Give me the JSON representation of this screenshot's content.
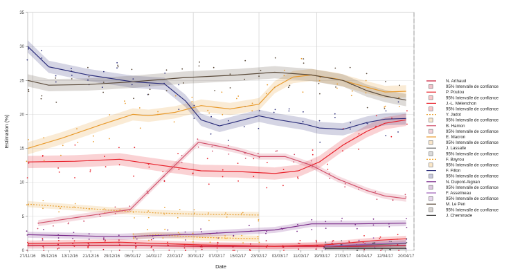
{
  "chart_data": {
    "type": "line",
    "xlabel": "Date",
    "ylabel": "Estimation (%)",
    "ylim": [
      0,
      35
    ],
    "yticks": [
      0,
      5,
      10,
      15,
      20,
      25,
      30,
      35
    ],
    "xlim": [
      "2016-11-27",
      "2017-04-23"
    ],
    "xtick_dates": [
      "2016-11-27",
      "2016-12-05",
      "2016-12-13",
      "2016-12-21",
      "2016-12-29",
      "2017-01-06",
      "2017-01-14",
      "2017-01-22",
      "2017-01-30",
      "2017-02-07",
      "2017-02-15",
      "2017-02-23",
      "2017-03-03",
      "2017-03-11",
      "2017-03-19",
      "2017-03-27",
      "2017-04-04",
      "2017-04-12",
      "2017-04-20"
    ],
    "xtick_labels": [
      "27/11/16",
      "05/12/16",
      "13/12/16",
      "21/12/16",
      "29/12/16",
      "06/01/17",
      "14/01/17",
      "22/01/17",
      "30/01/17",
      "07/02/17",
      "15/02/17",
      "23/02/17",
      "03/03/17",
      "11/03/17",
      "19/03/17",
      "27/03/17",
      "04/04/17",
      "12/04/17",
      "20/04/17"
    ],
    "vlines": [
      "2016-11-29",
      "2017-01-29",
      "2017-02-23",
      "2017-03-17"
    ],
    "final_line": "2017-04-23",
    "grid": true,
    "legend_position": "right",
    "series": [
      {
        "name": "N. Arthaud",
        "color": "#c8102e",
        "dash": "solid",
        "ci_label": "95% Intervalle de confiance",
        "points": [
          [
            "2016-11-27",
            0.7
          ],
          [
            "2017-01-01",
            0.7
          ],
          [
            "2017-02-01",
            0.6
          ],
          [
            "2017-03-01",
            0.6
          ],
          [
            "2017-04-01",
            0.6
          ],
          [
            "2017-04-20",
            0.7
          ]
        ]
      },
      {
        "name": "P. Poutou",
        "color": "#e8252b",
        "dash": "solid",
        "ci_label": "95% Intervalle de confiance",
        "points": [
          [
            "2016-11-27",
            1.0
          ],
          [
            "2017-01-01",
            1.2
          ],
          [
            "2017-02-01",
            0.8
          ],
          [
            "2017-03-01",
            0.6
          ],
          [
            "2017-03-20",
            0.8
          ],
          [
            "2017-04-10",
            1.5
          ],
          [
            "2017-04-20",
            1.7
          ]
        ]
      },
      {
        "name": "J.-L. Mélenchon",
        "color": "#e8202a",
        "dash": "solid",
        "ci_label": "95% Intervalle de confiance",
        "points": [
          [
            "2016-11-27",
            13.0
          ],
          [
            "2016-12-15",
            13.1
          ],
          [
            "2017-01-01",
            13.4
          ],
          [
            "2017-01-15",
            12.6
          ],
          [
            "2017-02-01",
            11.7
          ],
          [
            "2017-02-15",
            11.6
          ],
          [
            "2017-03-01",
            11.3
          ],
          [
            "2017-03-10",
            11.7
          ],
          [
            "2017-03-18",
            13.0
          ],
          [
            "2017-03-27",
            15.5
          ],
          [
            "2017-04-05",
            17.5
          ],
          [
            "2017-04-12",
            18.7
          ],
          [
            "2017-04-20",
            19.2
          ]
        ]
      },
      {
        "name": "Y. Jadot",
        "color": "#e8a33a",
        "dash": "dotted",
        "ci_label": "95% Intervalle de confiance",
        "points": [
          [
            "2016-11-27",
            6.8
          ],
          [
            "2016-12-15",
            6.3
          ],
          [
            "2017-01-01",
            5.8
          ],
          [
            "2017-01-15",
            5.5
          ],
          [
            "2017-02-01",
            5.3
          ],
          [
            "2017-02-23",
            5.2
          ]
        ]
      },
      {
        "name": "B. Hamon",
        "color": "#d0506a",
        "dash": "solid",
        "ci_label": "95% Intervalle de confiance",
        "points": [
          [
            "2016-12-01",
            4.0
          ],
          [
            "2017-01-05",
            6.0
          ],
          [
            "2017-01-18",
            11.0
          ],
          [
            "2017-01-31",
            15.9
          ],
          [
            "2017-02-08",
            15.3
          ],
          [
            "2017-02-15",
            14.7
          ],
          [
            "2017-02-23",
            13.8
          ],
          [
            "2017-03-05",
            13.8
          ],
          [
            "2017-03-15",
            12.5
          ],
          [
            "2017-03-25",
            10.5
          ],
          [
            "2017-04-05",
            8.8
          ],
          [
            "2017-04-12",
            8.0
          ],
          [
            "2017-04-20",
            7.6
          ]
        ]
      },
      {
        "name": "E. Macron",
        "color": "#e89a2c",
        "dash": "solid",
        "ci_label": "95% Intervalle de confiance",
        "points": [
          [
            "2016-11-27",
            15.0
          ],
          [
            "2016-12-10",
            16.5
          ],
          [
            "2016-12-25",
            18.5
          ],
          [
            "2017-01-06",
            20.0
          ],
          [
            "2017-01-12",
            19.8
          ],
          [
            "2017-01-22",
            20.3
          ],
          [
            "2017-02-01",
            21.3
          ],
          [
            "2017-02-12",
            20.8
          ],
          [
            "2017-02-23",
            21.5
          ],
          [
            "2017-03-01",
            24.0
          ],
          [
            "2017-03-08",
            25.5
          ],
          [
            "2017-03-15",
            25.8
          ],
          [
            "2017-03-25",
            25.2
          ],
          [
            "2017-04-05",
            24.0
          ],
          [
            "2017-04-12",
            23.3
          ],
          [
            "2017-04-20",
            23.4
          ]
        ]
      },
      {
        "name": "J. Lassalle",
        "color": "#6b6b6b",
        "dash": "solid",
        "ci_label": "95% Intervalle de confiance",
        "points": [
          [
            "2017-03-20",
            0.6
          ],
          [
            "2017-04-05",
            0.8
          ],
          [
            "2017-04-20",
            1.0
          ]
        ]
      },
      {
        "name": "F. Bayrou",
        "color": "#f0a020",
        "dash": "dotted",
        "ci_label": "95% Intervalle de confiance",
        "points": [
          [
            "2017-01-06",
            2.0
          ],
          [
            "2017-01-15",
            2.3
          ],
          [
            "2017-02-01",
            1.9
          ],
          [
            "2017-02-23",
            1.7
          ]
        ]
      },
      {
        "name": "F. Fillon",
        "color": "#2b2d7a",
        "dash": "solid",
        "ci_label": "95% Intervalle de confiance",
        "points": [
          [
            "2016-11-27",
            30.0
          ],
          [
            "2016-12-05",
            27.0
          ],
          [
            "2016-12-20",
            25.8
          ],
          [
            "2017-01-06",
            24.8
          ],
          [
            "2017-01-18",
            24.5
          ],
          [
            "2017-01-26",
            22.0
          ],
          [
            "2017-02-01",
            19.2
          ],
          [
            "2017-02-08",
            18.3
          ],
          [
            "2017-02-15",
            19.0
          ],
          [
            "2017-02-23",
            19.8
          ],
          [
            "2017-03-01",
            19.3
          ],
          [
            "2017-03-12",
            18.6
          ],
          [
            "2017-03-18",
            18.0
          ],
          [
            "2017-03-27",
            17.8
          ],
          [
            "2017-04-05",
            18.8
          ],
          [
            "2017-04-12",
            19.3
          ],
          [
            "2017-04-20",
            19.4
          ]
        ]
      },
      {
        "name": "N. Dupont-Aignan",
        "color": "#7a2c8a",
        "dash": "solid",
        "ci_label": "95% Intervalle de confiance",
        "points": [
          [
            "2016-11-27",
            2.3
          ],
          [
            "2017-01-01",
            2.0
          ],
          [
            "2017-02-01",
            2.4
          ],
          [
            "2017-03-01",
            3.0
          ],
          [
            "2017-03-15",
            3.9
          ],
          [
            "2017-04-01",
            3.9
          ],
          [
            "2017-04-20",
            4.0
          ]
        ]
      },
      {
        "name": "F. Asselineau",
        "color": "#9b59b6",
        "dash": "solid",
        "ci_label": "95% Intervalle de confiance",
        "points": [
          [
            "2017-03-20",
            0.6
          ],
          [
            "2017-04-05",
            0.9
          ],
          [
            "2017-04-20",
            1.1
          ]
        ]
      },
      {
        "name": "M. Le Pen",
        "color": "#5a4a3a",
        "dash": "solid",
        "ci_label": "95% Intervalle de confiance",
        "points": [
          [
            "2016-11-27",
            25.0
          ],
          [
            "2016-12-05",
            24.3
          ],
          [
            "2016-12-20",
            24.4
          ],
          [
            "2017-01-06",
            24.8
          ],
          [
            "2017-01-25",
            25.4
          ],
          [
            "2017-02-15",
            25.8
          ],
          [
            "2017-03-01",
            26.2
          ],
          [
            "2017-03-15",
            25.8
          ],
          [
            "2017-03-27",
            25.0
          ],
          [
            "2017-04-05",
            23.5
          ],
          [
            "2017-04-12",
            22.7
          ],
          [
            "2017-04-20",
            22.1
          ]
        ]
      },
      {
        "name": "J. Cheminade",
        "color": "#333333",
        "dash": "solid",
        "ci_label": "",
        "points": [
          [
            "2017-03-20",
            0.3
          ],
          [
            "2017-04-20",
            0.3
          ]
        ]
      }
    ]
  }
}
